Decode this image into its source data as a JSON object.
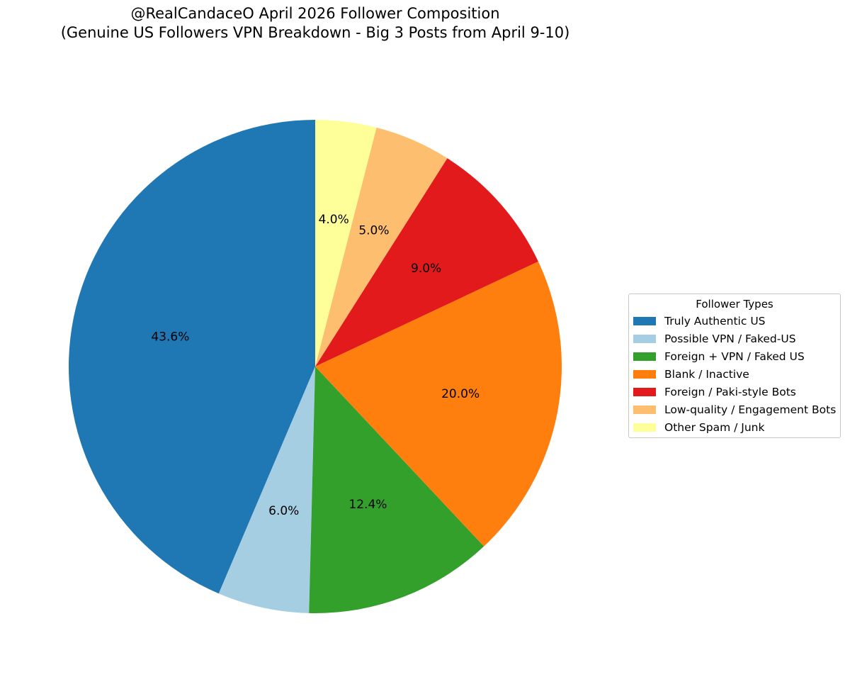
{
  "chart_data": {
    "type": "pie",
    "title": "@RealCandaceO April 2026 Follower Composition",
    "subtitle": "(Genuine US Followers VPN Breakdown - Big 3 Posts from April 9-10)",
    "legend_title": "Follower Types",
    "legend_placement": "right",
    "start_angle": "top",
    "direction": "counterclockwise",
    "slices": [
      {
        "name": "Truly Authentic US",
        "value": 43.6,
        "label": "43.6%",
        "color": "#1f77b4"
      },
      {
        "name": "Possible VPN / Faked-US",
        "value": 6.0,
        "label": "6.0%",
        "color": "#a6cee3"
      },
      {
        "name": "Foreign + VPN / Faked US",
        "value": 12.4,
        "label": "12.4%",
        "color": "#33a02c"
      },
      {
        "name": "Blank / Inactive",
        "value": 20.0,
        "label": "20.0%",
        "color": "#ff7f0e"
      },
      {
        "name": "Foreign / Paki-style Bots",
        "value": 9.0,
        "label": "9.0%",
        "color": "#e31a1c"
      },
      {
        "name": "Low-quality / Engagement Bots",
        "value": 5.0,
        "label": "5.0%",
        "color": "#fdbf6f"
      },
      {
        "name": "Other Spam / Junk",
        "value": 4.0,
        "label": "4.0%",
        "color": "#ffff99"
      }
    ]
  }
}
